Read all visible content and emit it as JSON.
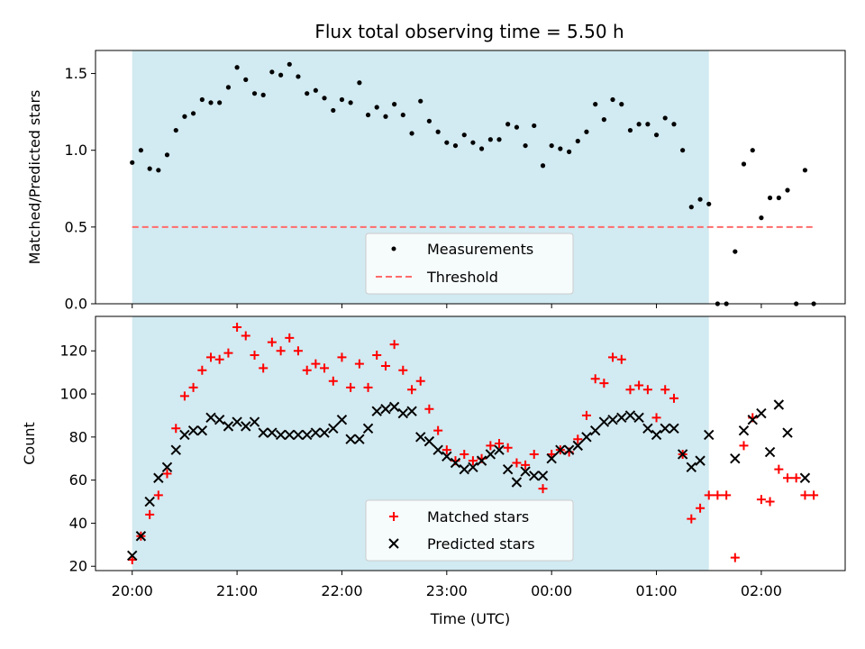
{
  "chart_data": {
    "title": "Flux total observing time = 5.50 h",
    "xlabel": "Time (UTC)",
    "x_ticks": [
      "20:00",
      "21:00",
      "22:00",
      "23:00",
      "00:00",
      "01:00",
      "02:00"
    ],
    "shaded_region": {
      "start": 0,
      "end": 5.5,
      "color": "#add8e6"
    },
    "panels": [
      {
        "type": "scatter",
        "ylabel": "Matched/Predicted stars",
        "ylim": [
          0,
          1.65
        ],
        "y_ticks": [
          "0.0",
          "0.5",
          "1.0",
          "1.5"
        ],
        "legend_position": "bottom-center",
        "threshold": {
          "name": "Threshold",
          "value": 0.5,
          "x_range": [
            0,
            6.5
          ],
          "color": "#ff6b6b"
        },
        "series": [
          {
            "name": "Measurements",
            "color": "#000000",
            "marker": "dot",
            "x": [
              0,
              0.083,
              0.167,
              0.25,
              0.333,
              0.417,
              0.5,
              0.583,
              0.667,
              0.75,
              0.833,
              0.917,
              1,
              1.083,
              1.167,
              1.25,
              1.333,
              1.417,
              1.5,
              1.583,
              1.667,
              1.75,
              1.833,
              1.917,
              2,
              2.083,
              2.167,
              2.25,
              2.333,
              2.417,
              2.5,
              2.583,
              2.667,
              2.75,
              2.833,
              2.917,
              3,
              3.083,
              3.167,
              3.25,
              3.333,
              3.417,
              3.5,
              3.583,
              3.667,
              3.75,
              3.833,
              3.917,
              4,
              4.083,
              4.167,
              4.25,
              4.333,
              4.417,
              4.5,
              4.583,
              4.667,
              4.75,
              4.833,
              4.917,
              5,
              5.083,
              5.167,
              5.25,
              5.333,
              5.417,
              5.5,
              5.583,
              5.667,
              5.75,
              5.833,
              5.917,
              6,
              6.083,
              6.167,
              6.25,
              6.333,
              6.417,
              6.5
            ],
            "y": [
              0.92,
              1.0,
              0.88,
              0.87,
              0.97,
              1.13,
              1.22,
              1.24,
              1.33,
              1.31,
              1.31,
              1.41,
              1.54,
              1.46,
              1.37,
              1.36,
              1.51,
              1.49,
              1.56,
              1.48,
              1.37,
              1.39,
              1.34,
              1.26,
              1.33,
              1.31,
              1.44,
              1.23,
              1.28,
              1.22,
              1.3,
              1.23,
              1.11,
              1.32,
              1.19,
              1.12,
              1.05,
              1.03,
              1.1,
              1.05,
              1.01,
              1.07,
              1.07,
              1.17,
              1.15,
              1.03,
              1.16,
              0.9,
              1.03,
              1.01,
              0.99,
              1.06,
              1.12,
              1.3,
              1.2,
              1.33,
              1.3,
              1.13,
              1.17,
              1.17,
              1.1,
              1.21,
              1.17,
              1.0,
              0.63,
              0.68,
              0.65,
              0.0,
              0.0,
              0.34,
              0.91,
              1.0,
              0.56,
              0.69,
              0.69,
              0.74,
              0.0,
              0.87,
              0.0
            ]
          }
        ]
      },
      {
        "type": "scatter",
        "ylabel": "Count",
        "ylim": [
          18,
          136
        ],
        "y_ticks": [
          "20",
          "40",
          "60",
          "80",
          "100",
          "120"
        ],
        "legend_position": "bottom-center",
        "series": [
          {
            "name": "Matched stars",
            "color": "#ff0000",
            "marker": "plus",
            "x": [
              0,
              0.083,
              0.167,
              0.25,
              0.333,
              0.417,
              0.5,
              0.583,
              0.667,
              0.75,
              0.833,
              0.917,
              1,
              1.083,
              1.167,
              1.25,
              1.333,
              1.417,
              1.5,
              1.583,
              1.667,
              1.75,
              1.833,
              1.917,
              2,
              2.083,
              2.167,
              2.25,
              2.333,
              2.417,
              2.5,
              2.583,
              2.667,
              2.75,
              2.833,
              2.917,
              3,
              3.083,
              3.167,
              3.25,
              3.333,
              3.417,
              3.5,
              3.583,
              3.667,
              3.75,
              3.833,
              3.917,
              4,
              4.083,
              4.167,
              4.25,
              4.333,
              4.417,
              4.5,
              4.583,
              4.667,
              4.75,
              4.833,
              4.917,
              5,
              5.083,
              5.167,
              5.25,
              5.333,
              5.417,
              5.5,
              5.583,
              5.667,
              5.75,
              5.833,
              5.917,
              6,
              6.083,
              6.167,
              6.25,
              6.333,
              6.417,
              6.5
            ],
            "y": [
              23,
              34,
              44,
              53,
              63,
              84,
              99,
              103,
              111,
              117,
              116,
              119,
              131,
              127,
              118,
              112,
              124,
              120,
              126,
              120,
              111,
              114,
              112,
              106,
              117,
              103,
              114,
              103,
              118,
              113,
              123,
              111,
              102,
              106,
              93,
              83,
              74,
              69,
              72,
              69,
              70,
              76,
              77,
              75,
              68,
              67,
              72,
              56,
              72,
              74,
              73,
              79,
              90,
              107,
              105,
              117,
              116,
              102,
              104,
              102,
              89,
              102,
              98,
              72,
              42,
              47,
              53,
              53,
              53,
              24,
              76,
              89,
              51,
              50,
              65,
              61,
              61,
              53,
              53
            ]
          },
          {
            "name": "Predicted stars",
            "color": "#000000",
            "marker": "x",
            "x": [
              0,
              0.083,
              0.167,
              0.25,
              0.333,
              0.417,
              0.5,
              0.583,
              0.667,
              0.75,
              0.833,
              0.917,
              1,
              1.083,
              1.167,
              1.25,
              1.333,
              1.417,
              1.5,
              1.583,
              1.667,
              1.75,
              1.833,
              1.917,
              2,
              2.083,
              2.167,
              2.25,
              2.333,
              2.417,
              2.5,
              2.583,
              2.667,
              2.75,
              2.833,
              2.917,
              3,
              3.083,
              3.167,
              3.25,
              3.333,
              3.417,
              3.5,
              3.583,
              3.667,
              3.75,
              3.833,
              3.917,
              4,
              4.083,
              4.167,
              4.25,
              4.333,
              4.417,
              4.5,
              4.583,
              4.667,
              4.75,
              4.833,
              4.917,
              5,
              5.083,
              5.167,
              5.25,
              5.333,
              5.417,
              5.5,
              5.75,
              5.833,
              5.917,
              6,
              6.083,
              6.167,
              6.25,
              6.417
            ],
            "y": [
              25,
              34,
              50,
              61,
              66,
              74,
              81,
              83,
              83,
              89,
              88,
              85,
              87,
              85,
              87,
              82,
              82,
              81,
              81,
              81,
              81,
              82,
              82,
              84,
              88,
              79,
              79,
              84,
              92,
              93,
              94,
              91,
              92,
              80,
              78,
              74,
              71,
              68,
              65,
              66,
              69,
              72,
              74,
              65,
              59,
              64,
              62,
              62,
              70,
              74,
              74,
              76,
              80,
              83,
              87,
              88,
              89,
              90,
              89,
              84,
              81,
              84,
              84,
              72,
              66,
              69,
              81,
              70,
              83,
              88,
              91,
              73,
              95,
              82,
              61
            ]
          }
        ]
      }
    ]
  }
}
